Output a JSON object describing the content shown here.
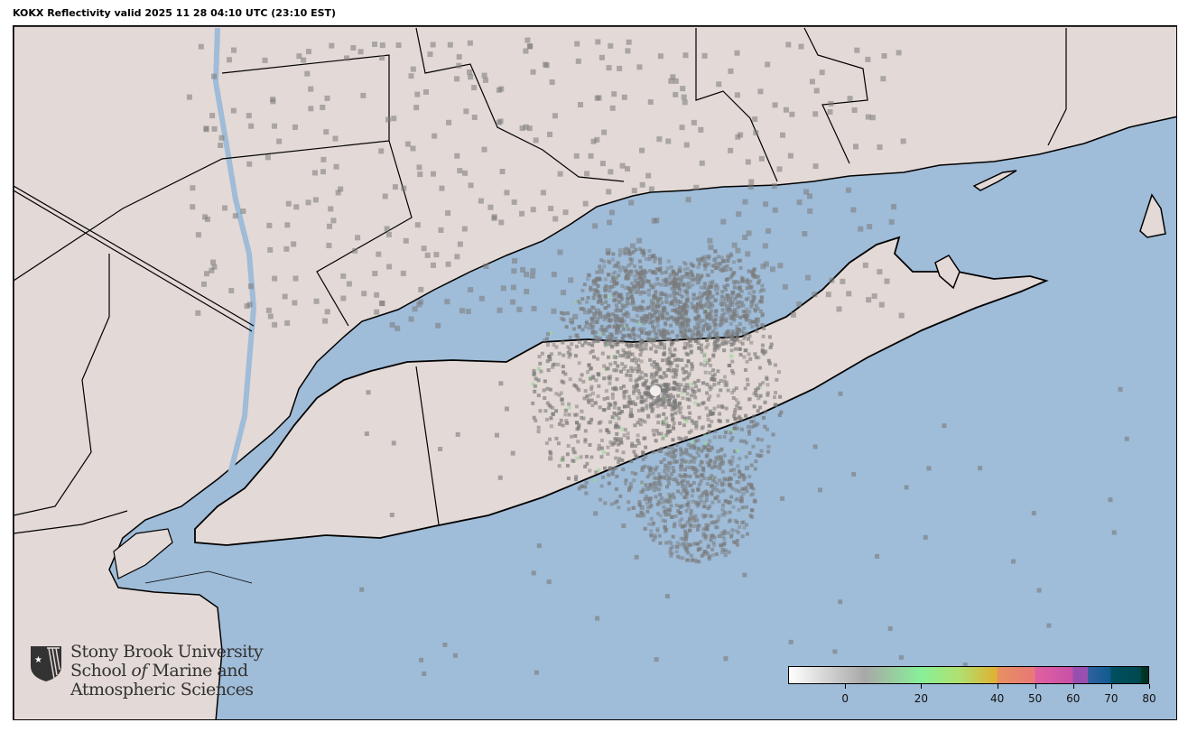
{
  "title": "KOKX Reflectivity valid 2025 11 28 04:10 UTC (23:10 EST)",
  "map": {
    "radar_site": "KOKX",
    "colors": {
      "water": "#9fbcd8",
      "land": "#e3d9d6",
      "echo": "#7a7a7a",
      "border": "#000000"
    }
  },
  "logo": {
    "line1": "Stony Brook University",
    "line2_a": "School ",
    "line2_em": "of",
    "line2_b": " Marine and",
    "line3": "Atmospheric Sciences"
  },
  "colorbar": {
    "min": -15,
    "max": 80,
    "ticks": [
      "0",
      "20",
      "40",
      "50",
      "60",
      "70",
      "80"
    ],
    "tick_values": [
      0,
      20,
      40,
      50,
      60,
      70,
      80
    ],
    "stops": [
      {
        "v": -15,
        "c": "#ffffff"
      },
      {
        "v": 5,
        "c": "#a8a8a8"
      },
      {
        "v": 20,
        "c": "#88f098"
      },
      {
        "v": 30,
        "c": "#b0e070"
      },
      {
        "v": 40,
        "c": "#e0b030"
      },
      {
        "v": 40.1,
        "c": "#e89060"
      },
      {
        "v": 50,
        "c": "#e87878"
      },
      {
        "v": 50.1,
        "c": "#e060a0"
      },
      {
        "v": 60,
        "c": "#c850a8"
      },
      {
        "v": 60.1,
        "c": "#9850b0"
      },
      {
        "v": 64,
        "c": "#9850b0"
      },
      {
        "v": 64.1,
        "c": "#3060a0"
      },
      {
        "v": 70,
        "c": "#105c90"
      },
      {
        "v": 70.1,
        "c": "#005060"
      },
      {
        "v": 78,
        "c": "#004850"
      },
      {
        "v": 78.1,
        "c": "#003828"
      },
      {
        "v": 80,
        "c": "#003020"
      }
    ]
  }
}
